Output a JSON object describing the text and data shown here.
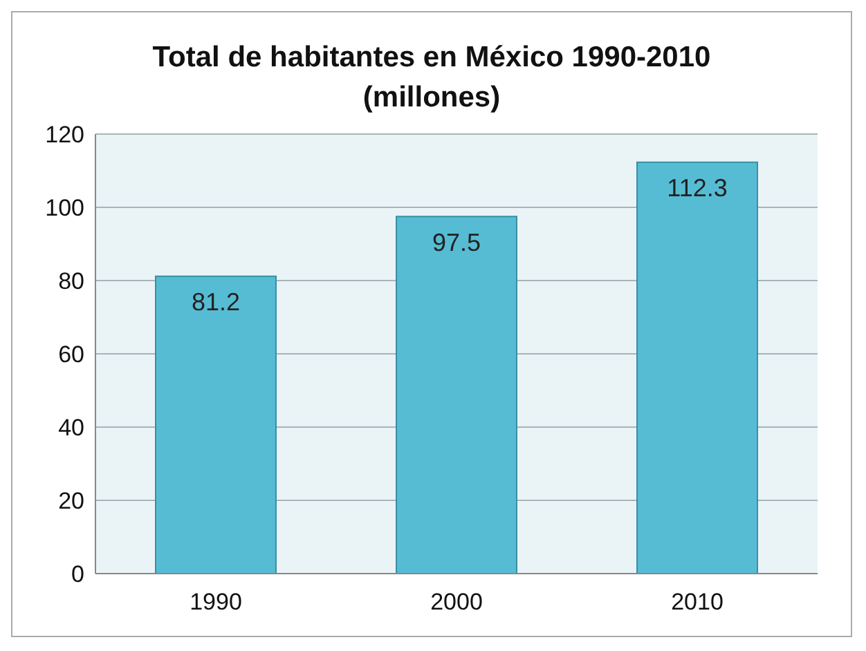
{
  "chart_data": {
    "type": "bar",
    "title": "Total de habitantes en México 1990-2010 (millones)",
    "categories": [
      "1990",
      "2000",
      "2010"
    ],
    "values": [
      81.2,
      97.5,
      112.3
    ],
    "color": "#56bcd4",
    "ylim": [
      0,
      120
    ],
    "yticks": [
      0,
      20,
      40,
      60,
      80,
      100,
      120
    ],
    "grid": "y",
    "data_labels": true
  }
}
